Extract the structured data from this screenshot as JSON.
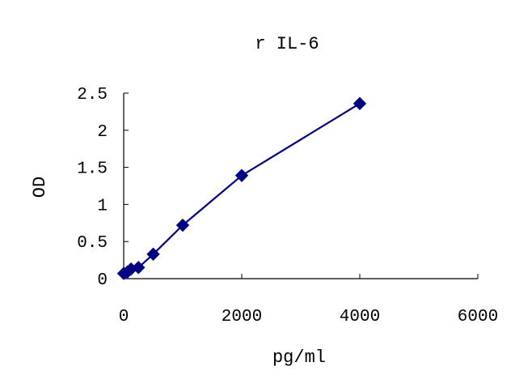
{
  "chart_data": {
    "type": "line",
    "title": "r IL-6",
    "xlabel": "pg/ml",
    "ylabel": "OD",
    "xlim": [
      0,
      6000
    ],
    "ylim": [
      0,
      2.5
    ],
    "x_ticks": [
      0,
      2000,
      4000,
      6000
    ],
    "x_tick_labels": [
      "0",
      "2000",
      "4000",
      "6000"
    ],
    "y_ticks": [
      0,
      0.5,
      1,
      1.5,
      2,
      2.5
    ],
    "y_tick_labels": [
      "0",
      "0.5",
      "1",
      "1.5",
      "2",
      "2.5"
    ],
    "grid": false,
    "legend": "none",
    "series": [
      {
        "color": "#000080",
        "marker": "diamond",
        "points": [
          {
            "x": 0,
            "y": 0.07
          },
          {
            "x": 62.5,
            "y": 0.09
          },
          {
            "x": 125,
            "y": 0.13
          },
          {
            "x": 250,
            "y": 0.15
          },
          {
            "x": 500,
            "y": 0.33
          },
          {
            "x": 1000,
            "y": 0.72
          },
          {
            "x": 2000,
            "y": 1.39
          },
          {
            "x": 4000,
            "y": 2.36
          }
        ]
      }
    ]
  }
}
